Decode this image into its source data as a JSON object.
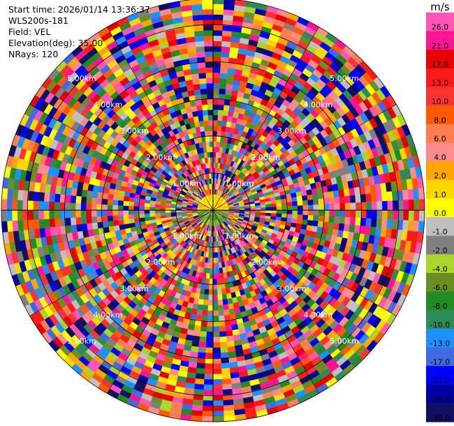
{
  "header": {
    "start_time": "Start time: 2026/01/14 13:36:37",
    "instrument": "WLS200s-181",
    "field": "Field: VEL",
    "elevation": "Elevation(deg): 35.00",
    "nrays": "NRays: 120"
  },
  "chart_data": {
    "type": "heatmap",
    "projection": "polar-ppi",
    "field": "VEL",
    "nrays": 120,
    "range_rings_km": [
      1.0,
      2.0,
      3.0,
      4.0,
      5.0
    ],
    "ring_labels": [
      "1.00km",
      "2.00km",
      "3.00km",
      "4.00km",
      "5.00km"
    ],
    "max_range_km": 5.7,
    "colorbar": {
      "unit": "m/s",
      "ticks": [
        "26.0",
        "21.0",
        "17.0",
        "13.0",
        "10.0",
        "8.0",
        "6.0",
        "4.0",
        "2.0",
        "1.0",
        "0.0",
        "-1.0",
        "-2.0",
        "-4.0",
        "-6.0",
        "-8.0",
        "-10.0",
        "-13.0",
        "-17.0",
        "-21.0",
        "-26.0",
        "-30.0"
      ],
      "colors": [
        "#ff55b4",
        "#ff1493",
        "#e60000",
        "#ff1a1a",
        "#ff3232",
        "#ff5a00",
        "#ff7f50",
        "#ff8c8c",
        "#ffa500",
        "#ffd700",
        "#ffff00",
        "#bfbfbf",
        "#808080",
        "#a9d42a",
        "#6b8e23",
        "#228b22",
        "#2e8b57",
        "#1e90ff",
        "#4169e1",
        "#0000ff",
        "#0000a0",
        "#101060"
      ]
    }
  }
}
